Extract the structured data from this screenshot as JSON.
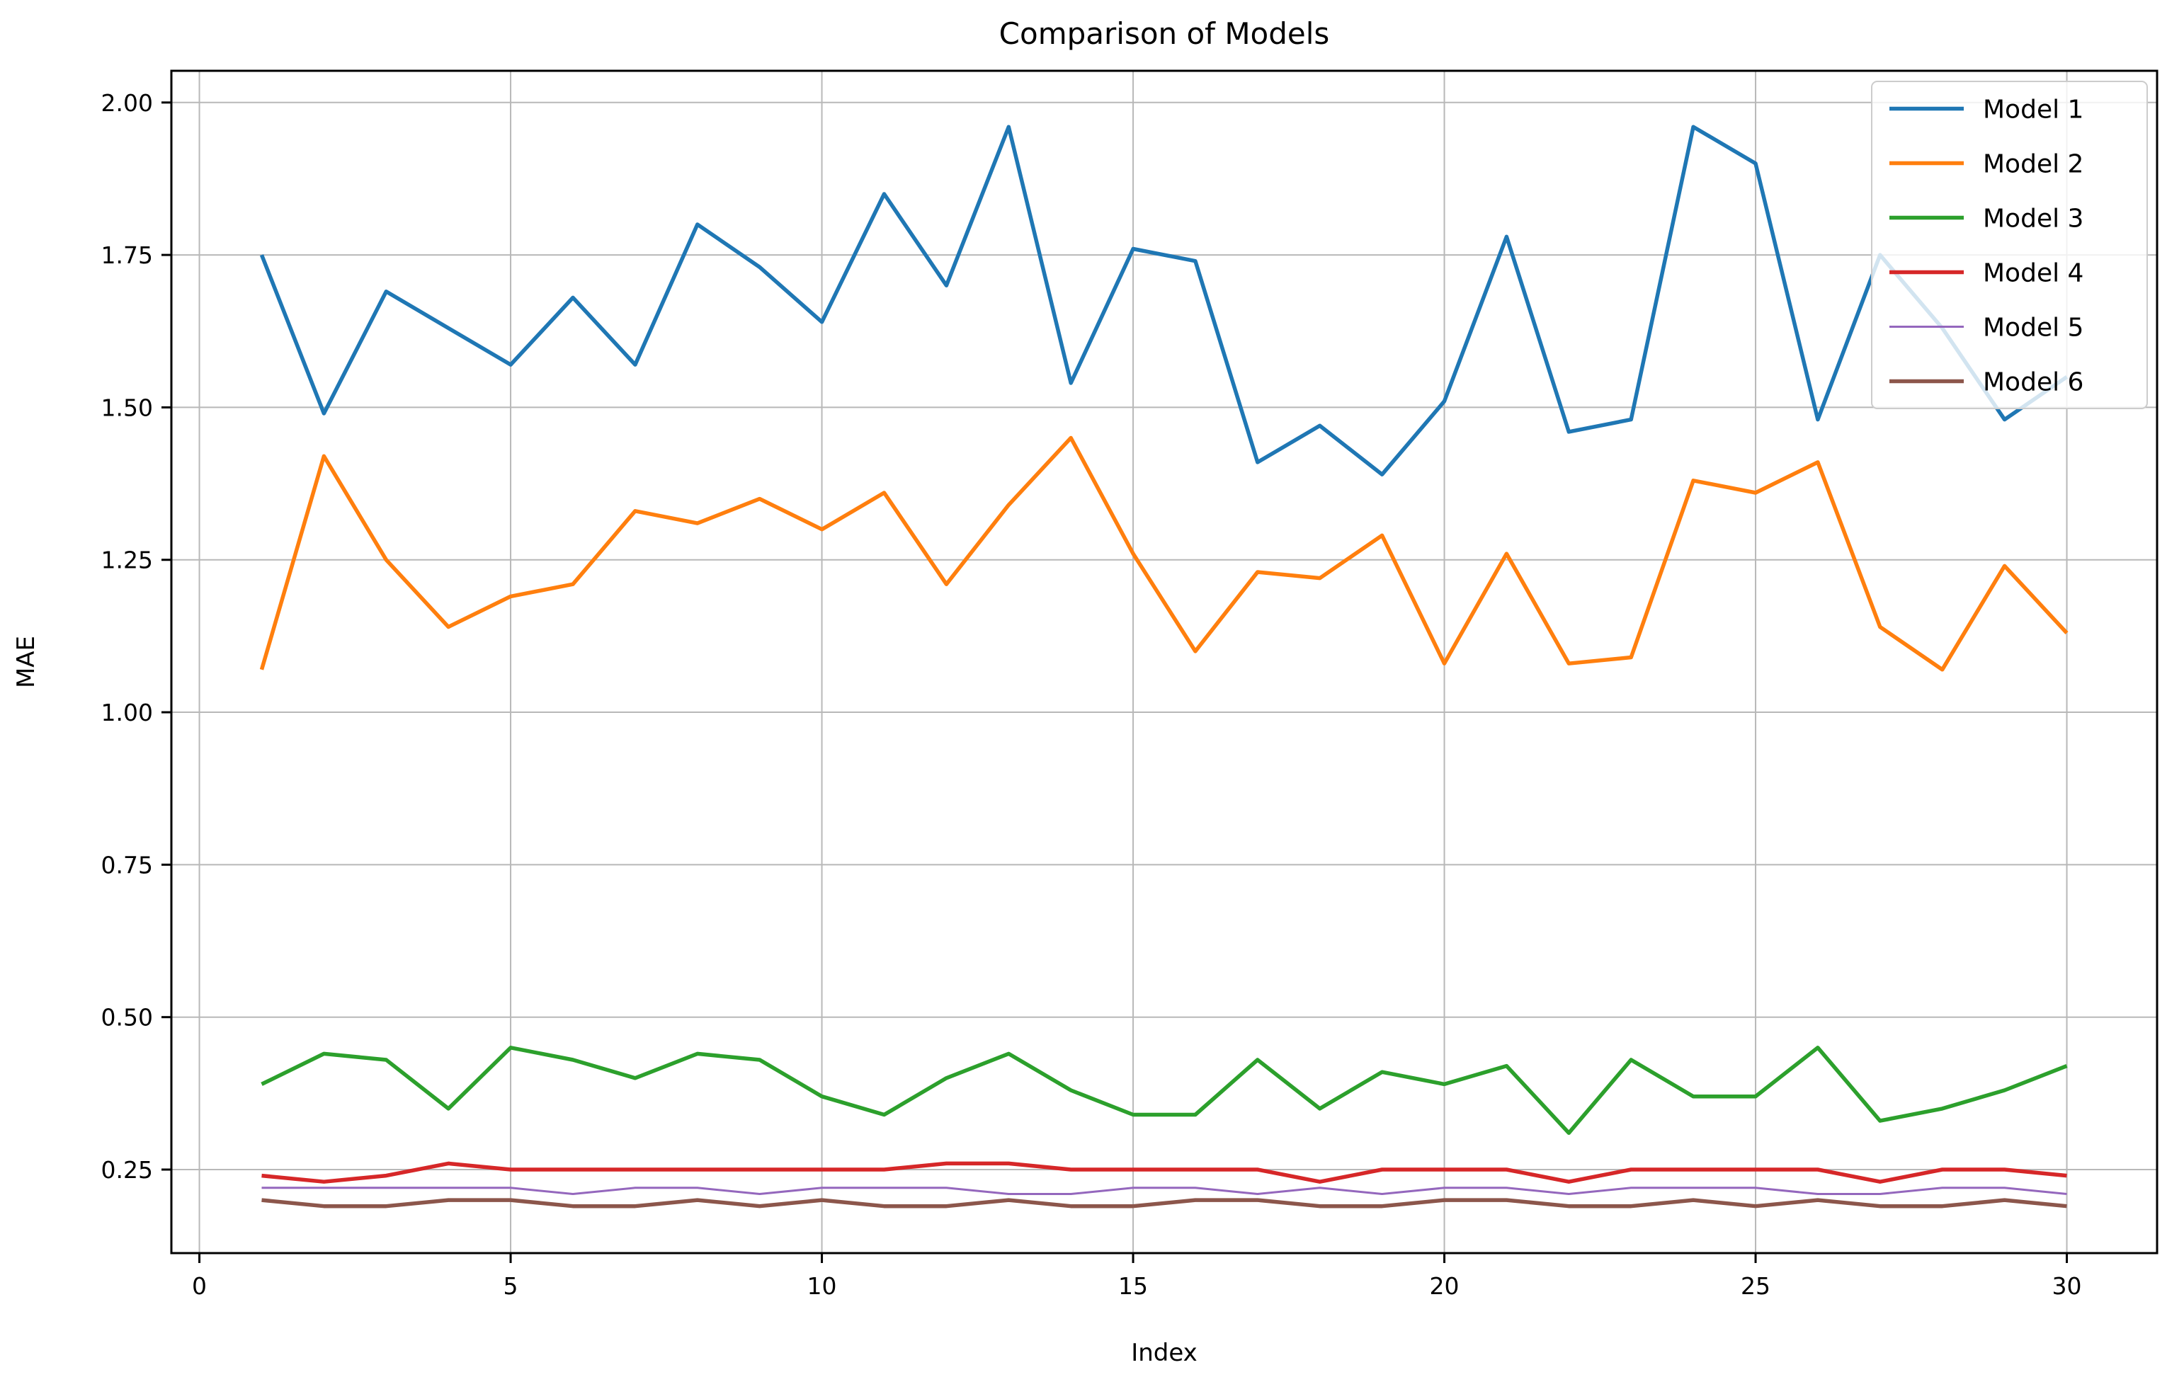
{
  "chart": {
    "title": "Comparison of Models",
    "xlabel": "Index",
    "ylabel": "MAE",
    "x_ticks": [
      "0",
      "5",
      "10",
      "15",
      "20",
      "25",
      "30"
    ],
    "x_tick_values": [
      0,
      5,
      10,
      15,
      20,
      25,
      30
    ],
    "y_ticks": [
      "2.00",
      "1.75",
      "1.50",
      "1.25",
      "1.00",
      "0.75",
      "0.50",
      "0.25"
    ],
    "y_tick_values": [
      2.0,
      1.75,
      1.5,
      1.25,
      1.0,
      0.75,
      0.5,
      0.25
    ],
    "grid": true,
    "grid_color": "#b8b8b8",
    "spine_color": "#000000",
    "background_color": "#ffffff",
    "legend_position": "upper-right",
    "legend_labels": [
      "Model 1",
      "Model 2",
      "Model 3",
      "Model 4",
      "Model 5",
      "Model 6"
    ]
  },
  "chart_data": {
    "type": "line",
    "title": "Comparison of Models",
    "xlabel": "Index",
    "ylabel": "MAE",
    "xlim": [
      -0.45,
      31.45
    ],
    "ylim": [
      0.113,
      2.052
    ],
    "legend_position": "upper-right",
    "grid": "on",
    "x": [
      1,
      2,
      3,
      4,
      5,
      6,
      7,
      8,
      9,
      10,
      11,
      12,
      13,
      14,
      15,
      16,
      17,
      18,
      19,
      20,
      21,
      22,
      23,
      24,
      25,
      26,
      27,
      28,
      29,
      30
    ],
    "series": [
      {
        "name": "Model 1",
        "color": "#1f77b4",
        "linewidth": 5.5,
        "values": [
          1.75,
          1.49,
          1.69,
          1.63,
          1.57,
          1.68,
          1.57,
          1.8,
          1.73,
          1.64,
          1.85,
          1.7,
          1.96,
          1.54,
          1.76,
          1.74,
          1.41,
          1.47,
          1.39,
          1.51,
          1.78,
          1.46,
          1.48,
          1.96,
          1.9,
          1.48,
          1.75,
          1.63,
          1.48,
          1.55
        ]
      },
      {
        "name": "Model 2",
        "color": "#ff7f0e",
        "linewidth": 5.5,
        "values": [
          1.07,
          1.42,
          1.25,
          1.14,
          1.19,
          1.21,
          1.33,
          1.31,
          1.35,
          1.3,
          1.36,
          1.21,
          1.34,
          1.45,
          1.26,
          1.1,
          1.23,
          1.22,
          1.29,
          1.08,
          1.26,
          1.08,
          1.09,
          1.38,
          1.36,
          1.41,
          1.14,
          1.07,
          1.24,
          1.13
        ]
      },
      {
        "name": "Model 3",
        "color": "#2ca02c",
        "linewidth": 5.5,
        "values": [
          0.39,
          0.44,
          0.43,
          0.35,
          0.45,
          0.43,
          0.4,
          0.44,
          0.43,
          0.37,
          0.34,
          0.4,
          0.44,
          0.38,
          0.34,
          0.34,
          0.43,
          0.35,
          0.41,
          0.39,
          0.42,
          0.31,
          0.43,
          0.37,
          0.37,
          0.45,
          0.33,
          0.35,
          0.38,
          0.42
        ]
      },
      {
        "name": "Model 4",
        "color": "#d62728",
        "linewidth": 5.5,
        "values": [
          0.24,
          0.23,
          0.24,
          0.26,
          0.25,
          0.25,
          0.25,
          0.25,
          0.25,
          0.25,
          0.25,
          0.26,
          0.26,
          0.25,
          0.25,
          0.25,
          0.25,
          0.23,
          0.25,
          0.25,
          0.25,
          0.23,
          0.25,
          0.25,
          0.25,
          0.25,
          0.23,
          0.25,
          0.25,
          0.24
        ]
      },
      {
        "name": "Model 5",
        "color": "#9467bd",
        "linewidth": 3,
        "values": [
          0.22,
          0.22,
          0.22,
          0.22,
          0.22,
          0.21,
          0.22,
          0.22,
          0.21,
          0.22,
          0.22,
          0.22,
          0.21,
          0.21,
          0.22,
          0.22,
          0.21,
          0.22,
          0.21,
          0.22,
          0.22,
          0.21,
          0.22,
          0.22,
          0.22,
          0.21,
          0.21,
          0.22,
          0.22,
          0.21
        ]
      },
      {
        "name": "Model 6",
        "color": "#8c564b",
        "linewidth": 5.5,
        "values": [
          0.2,
          0.19,
          0.19,
          0.2,
          0.2,
          0.19,
          0.19,
          0.2,
          0.19,
          0.2,
          0.19,
          0.19,
          0.2,
          0.19,
          0.19,
          0.2,
          0.2,
          0.19,
          0.19,
          0.2,
          0.2,
          0.19,
          0.19,
          0.2,
          0.19,
          0.2,
          0.19,
          0.19,
          0.2,
          0.19
        ]
      }
    ]
  }
}
